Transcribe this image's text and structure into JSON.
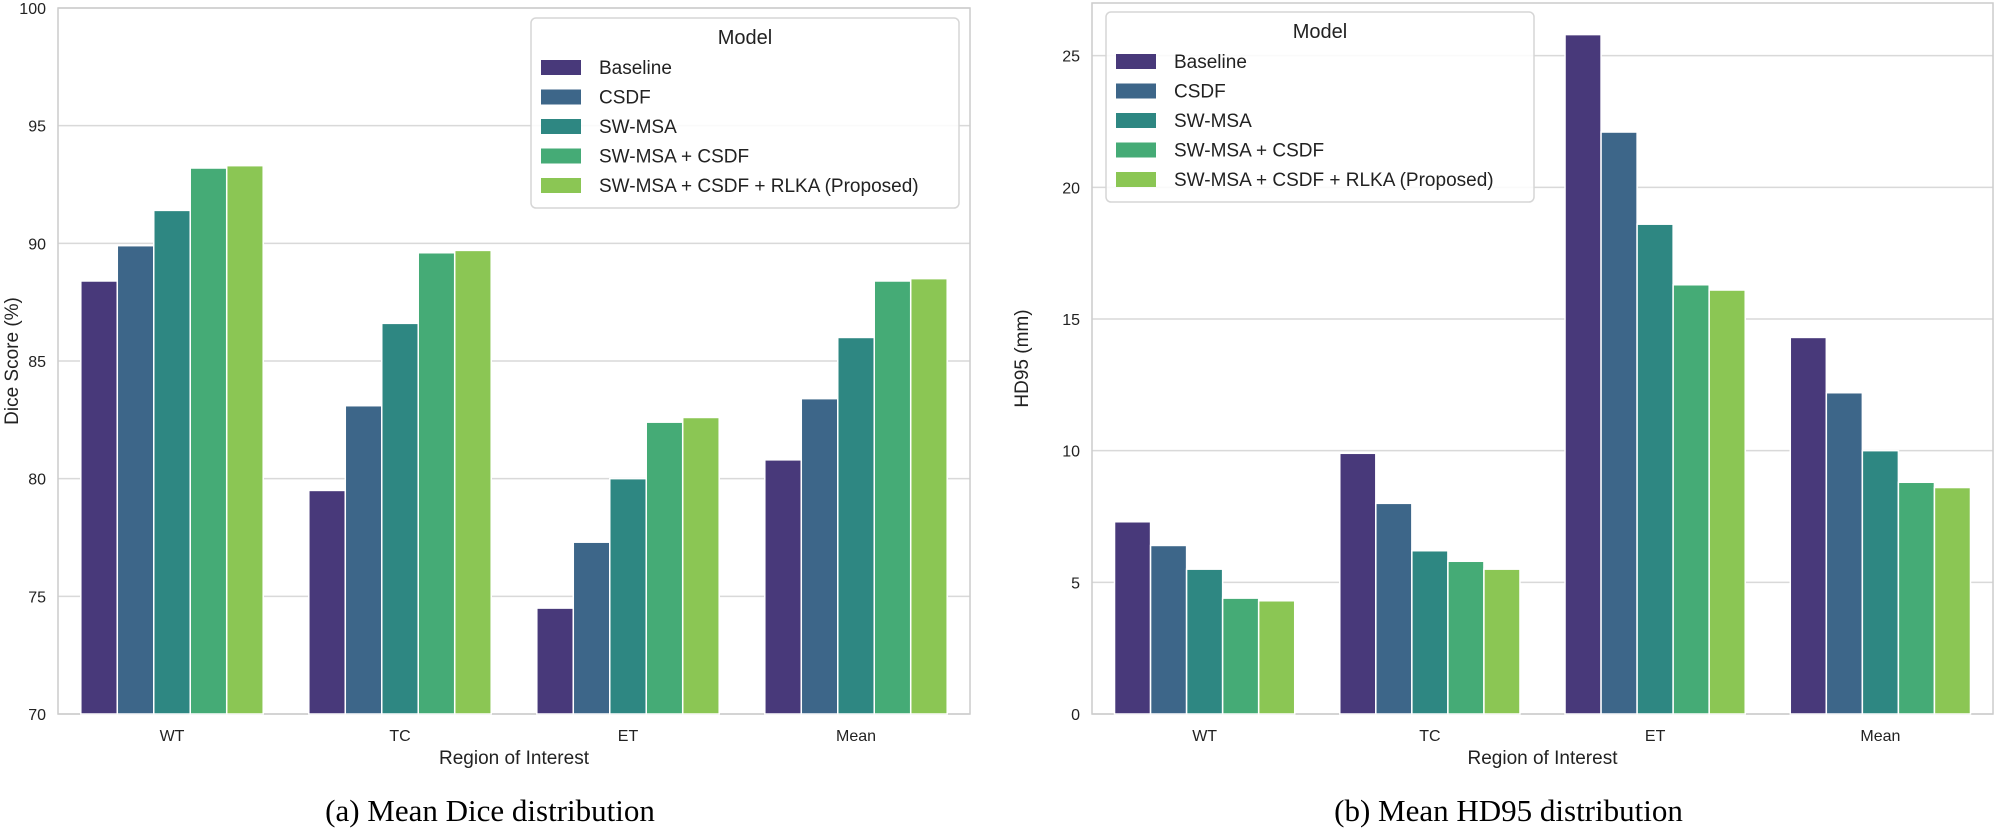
{
  "palette": [
    "#48397a",
    "#3d6689",
    "#2e8782",
    "#45ab76",
    "#8bc654"
  ],
  "chart_data": [
    {
      "type": "bar",
      "id": "a",
      "title": "",
      "caption": "(a) Mean Dice distribution",
      "xlabel": "Region of Interest",
      "ylabel": "Dice Score (%)",
      "categories": [
        "WT",
        "TC",
        "ET",
        "Mean"
      ],
      "ylim": [
        70,
        100
      ],
      "yticks": [
        70,
        75,
        80,
        85,
        90,
        95,
        100
      ],
      "grid": true,
      "legend_title": "Model",
      "legend_position": "top-right",
      "series": [
        {
          "name": "Baseline",
          "values": [
            88.4,
            79.5,
            74.5,
            80.8
          ]
        },
        {
          "name": "CSDF",
          "values": [
            89.9,
            83.1,
            77.3,
            83.4
          ]
        },
        {
          "name": "SW-MSA",
          "values": [
            91.4,
            86.6,
            80.0,
            86.0
          ]
        },
        {
          "name": "SW-MSA + CSDF",
          "values": [
            93.2,
            89.6,
            82.4,
            88.4
          ]
        },
        {
          "name": "SW-MSA + CSDF + RLKA (Proposed)",
          "values": [
            93.3,
            89.7,
            82.6,
            88.5
          ]
        }
      ]
    },
    {
      "type": "bar",
      "id": "b",
      "title": "",
      "caption": "(b) Mean HD95 distribution",
      "xlabel": "Region of Interest",
      "ylabel": "HD95 (mm)",
      "categories": [
        "WT",
        "TC",
        "ET",
        "Mean"
      ],
      "ylim": [
        0,
        27
      ],
      "yticks": [
        0,
        5,
        10,
        15,
        20,
        25
      ],
      "grid": true,
      "legend_title": "Model",
      "legend_position": "top-left",
      "series": [
        {
          "name": "Baseline",
          "values": [
            7.3,
            9.9,
            25.8,
            14.3
          ]
        },
        {
          "name": "CSDF",
          "values": [
            6.4,
            8.0,
            22.1,
            12.2
          ]
        },
        {
          "name": "SW-MSA",
          "values": [
            5.5,
            6.2,
            18.6,
            10.0
          ]
        },
        {
          "name": "SW-MSA + CSDF",
          "values": [
            4.4,
            5.8,
            16.3,
            8.8
          ]
        },
        {
          "name": "SW-MSA + CSDF + RLKA (Proposed)",
          "values": [
            4.3,
            5.5,
            16.1,
            8.6
          ]
        }
      ]
    }
  ]
}
